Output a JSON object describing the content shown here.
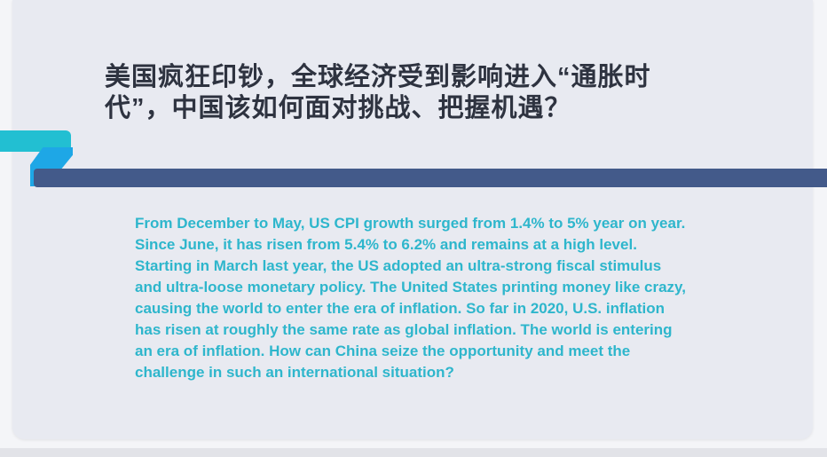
{
  "slide": {
    "title": "美国疯狂印钞，全球经济受到影响进入“通胀时代”，中国该如何面对挑战、把握机遇？",
    "body_lines": [
      "From December to May, US CPI growth surged from 1.4% to 5% year on year.",
      "Since June, it has risen from 5.4% to 6.2% and remains at a high level.",
      "Starting in March last year, the US adopted an ultra-strong fiscal stimulus",
      "and ultra-loose monetary policy. The United States printing money like crazy,",
      "causing the world to enter the era of inflation. So far in 2020, U.S. inflation",
      "has risen at roughly the same rate as global inflation. The world is entering",
      "an era of inflation. How can China seize the opportunity and meet the",
      "challenge in such an international situation?"
    ],
    "colors": {
      "accent_teal": "#22bfd2",
      "accent_blue": "#1ea7e6",
      "bar_navy": "#435a8a",
      "text_teal": "#2eb6cc",
      "title": "#2e3340"
    }
  }
}
